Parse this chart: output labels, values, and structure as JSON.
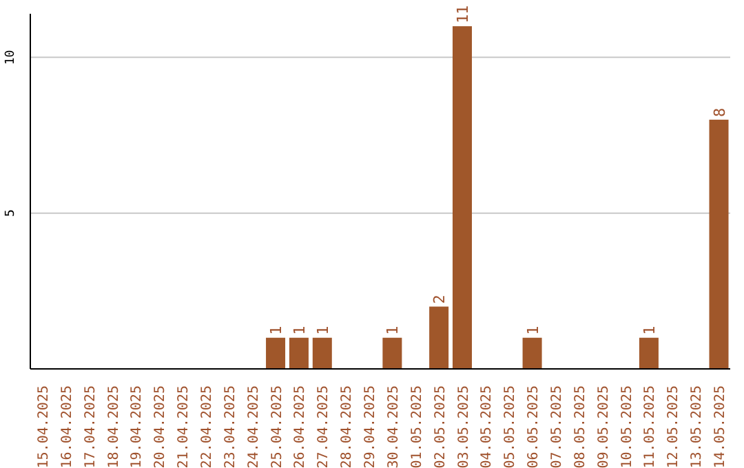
{
  "chart_data": {
    "type": "bar",
    "categories": [
      "15.04.2025",
      "16.04.2025",
      "17.04.2025",
      "18.04.2025",
      "19.04.2025",
      "20.04.2025",
      "21.04.2025",
      "22.04.2025",
      "23.04.2025",
      "24.04.2025",
      "25.04.2025",
      "26.04.2025",
      "27.04.2025",
      "28.04.2025",
      "29.04.2025",
      "30.04.2025",
      "01.05.2025",
      "02.05.2025",
      "03.05.2025",
      "04.05.2025",
      "05.05.2025",
      "06.05.2025",
      "07.05.2025",
      "08.05.2025",
      "09.05.2025",
      "10.05.2025",
      "11.05.2025",
      "12.05.2025",
      "13.05.2025",
      "14.05.2025"
    ],
    "values": [
      0,
      0,
      0,
      0,
      0,
      0,
      0,
      0,
      0,
      0,
      1,
      1,
      1,
      0,
      0,
      1,
      0,
      2,
      11,
      0,
      0,
      1,
      0,
      0,
      0,
      0,
      1,
      0,
      0,
      8
    ],
    "value_labels": [
      null,
      null,
      null,
      null,
      null,
      null,
      null,
      null,
      null,
      null,
      "1",
      "1",
      "1",
      null,
      null,
      "1",
      null,
      "2",
      "11",
      null,
      null,
      "1",
      null,
      null,
      null,
      null,
      "1",
      null,
      null,
      "8"
    ],
    "color": "#a0572a",
    "ylim": [
      0,
      11.4
    ],
    "yticks": [
      5,
      10
    ],
    "grid": "y"
  }
}
